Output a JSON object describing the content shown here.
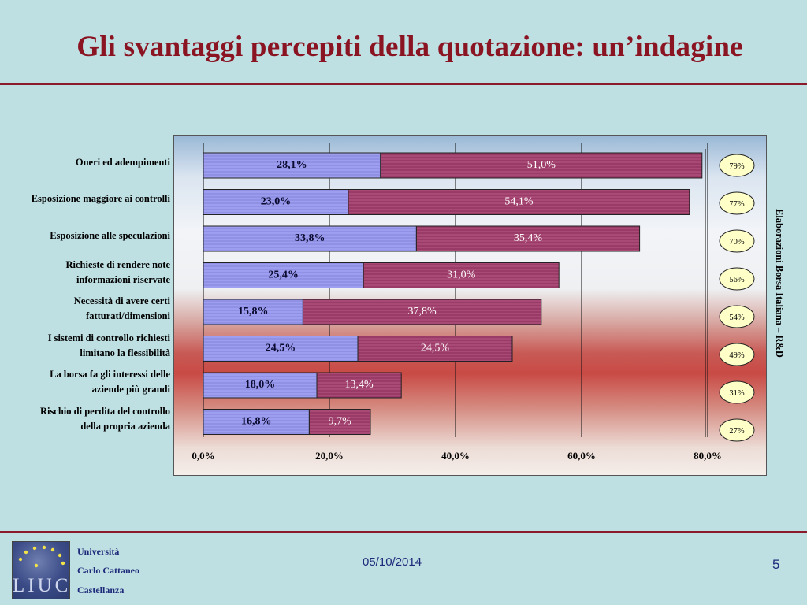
{
  "slide": {
    "title": "Gli svantaggi percepiti della quotazione: un’indagine",
    "source_note": "Elaborazioni Borsa Italiana – R&D",
    "date": "05/10/2014",
    "page_number": "5",
    "university": [
      "Università",
      "Carlo Cattaneo",
      "Castellanza"
    ],
    "logo_text": "LIUC"
  },
  "colors": {
    "series1": "#9d9ef0",
    "series2": "#9a3a66",
    "badge_fill": "#ffffc8",
    "title": "#8b1422"
  },
  "chart_data": {
    "type": "bar",
    "orientation": "horizontal",
    "stacked": true,
    "categories": [
      "Oneri ed adempimenti",
      "Esposizione maggiore ai controlli",
      "Esposizione alle speculazioni",
      "Richieste di rendere note informazioni riservate",
      "Necessità di avere certi fatturati/dimensioni",
      "I sistemi di controllo richiesti limitano la flessibilità",
      "La borsa fa gli interessi delle aziende più grandi",
      "Rischio di perdita del controllo della propria azienda"
    ],
    "category_lines": [
      [
        "Oneri ed adempimenti"
      ],
      [
        "Esposizione maggiore ai controlli"
      ],
      [
        "Esposizione alle speculazioni"
      ],
      [
        "Richieste di rendere note",
        "informazioni riservate"
      ],
      [
        "Necessità di avere certi",
        "fatturati/dimensioni"
      ],
      [
        "I sistemi di controllo richiesti",
        "limitano la flessibilità"
      ],
      [
        "La borsa fa gli interessi delle",
        "aziende più grandi"
      ],
      [
        "Rischio di perdita del controllo",
        "della propria azienda"
      ]
    ],
    "series": [
      {
        "values": [
          28.1,
          23.0,
          33.8,
          25.4,
          15.8,
          24.5,
          18.0,
          16.8
        ],
        "labels": [
          "28,1%",
          "23,0%",
          "33,8%",
          "25,4%",
          "15,8%",
          "24,5%",
          "18,0%",
          "16,8%"
        ]
      },
      {
        "values": [
          51.0,
          54.1,
          35.4,
          31.0,
          37.8,
          24.5,
          13.4,
          9.7
        ],
        "labels": [
          "51,0%",
          "54,1%",
          "35,4%",
          "31,0%",
          "37,8%",
          "24,5%",
          "13,4%",
          "9,7%"
        ]
      }
    ],
    "totals": [
      "79%",
      "77%",
      "70%",
      "56%",
      "54%",
      "49%",
      "31%",
      "27%"
    ],
    "x_ticks": [
      0,
      20,
      40,
      60,
      80
    ],
    "x_tick_labels": [
      "0,0%",
      "20,0%",
      "40,0%",
      "60,0%",
      "80,0%"
    ],
    "xlim": [
      0,
      80
    ],
    "grid": true
  }
}
